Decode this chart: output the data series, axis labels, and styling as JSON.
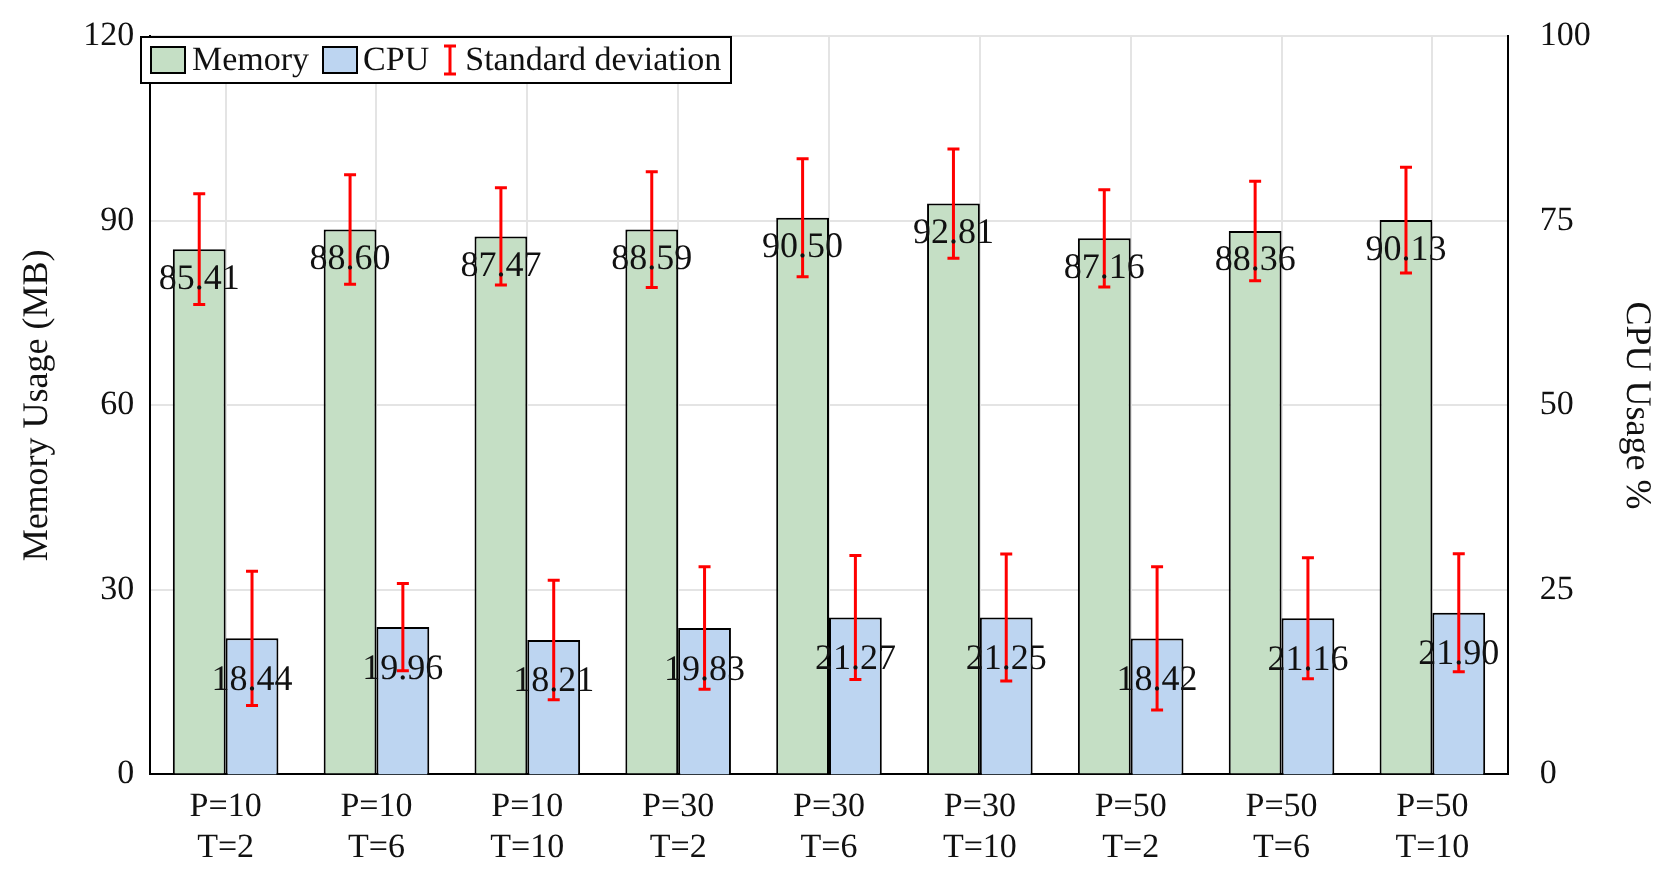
{
  "chart_data": {
    "type": "bar",
    "xlabel": null,
    "ylabel": "Memory Usage (MB)",
    "y2label": "CPU Usage %",
    "categories": [
      "P=10\nT=2",
      "P=10\nT=6",
      "P=10\nT=10",
      "P=30\nT=2",
      "P=30\nT=6",
      "P=30\nT=10",
      "P=50\nT=2",
      "P=50\nT=6",
      "P=50\nT=10"
    ],
    "series": [
      {
        "name": "Memory",
        "color": "#c5dfc5",
        "values": [
          85.41,
          88.6,
          87.47,
          88.59,
          90.5,
          92.81,
          87.16,
          88.36,
          90.13
        ],
        "errors": [
          9.0,
          8.9,
          7.9,
          9.4,
          9.6,
          8.9,
          7.9,
          8.1,
          8.6
        ],
        "value_labels": [
          "85.41",
          "88.60",
          "87.47",
          "88.59",
          "90.50",
          "92.81",
          "87.16",
          "88.36",
          "90.13"
        ]
      },
      {
        "name": "CPU",
        "color": "#bdd5f1",
        "axis": "y2",
        "values": [
          18.44,
          19.96,
          18.21,
          19.83,
          21.27,
          21.25,
          18.42,
          21.16,
          21.9
        ],
        "errors": [
          9.1,
          5.9,
          8.1,
          8.3,
          8.4,
          8.6,
          9.7,
          8.2,
          8.0
        ],
        "value_labels": [
          "18.44",
          "19.96",
          "18.21",
          "19.83",
          "21.27",
          "21.25",
          "18.42",
          "21.16",
          "21.90"
        ]
      }
    ],
    "ylim": [
      0,
      120
    ],
    "yticks": [
      0,
      30,
      60,
      90,
      120
    ],
    "y2lim": [
      0,
      100
    ],
    "y2ticks": [
      0,
      25,
      50,
      75,
      100
    ],
    "grid": true,
    "legend": "top left",
    "annotations": [
      "Standard deviation"
    ]
  }
}
